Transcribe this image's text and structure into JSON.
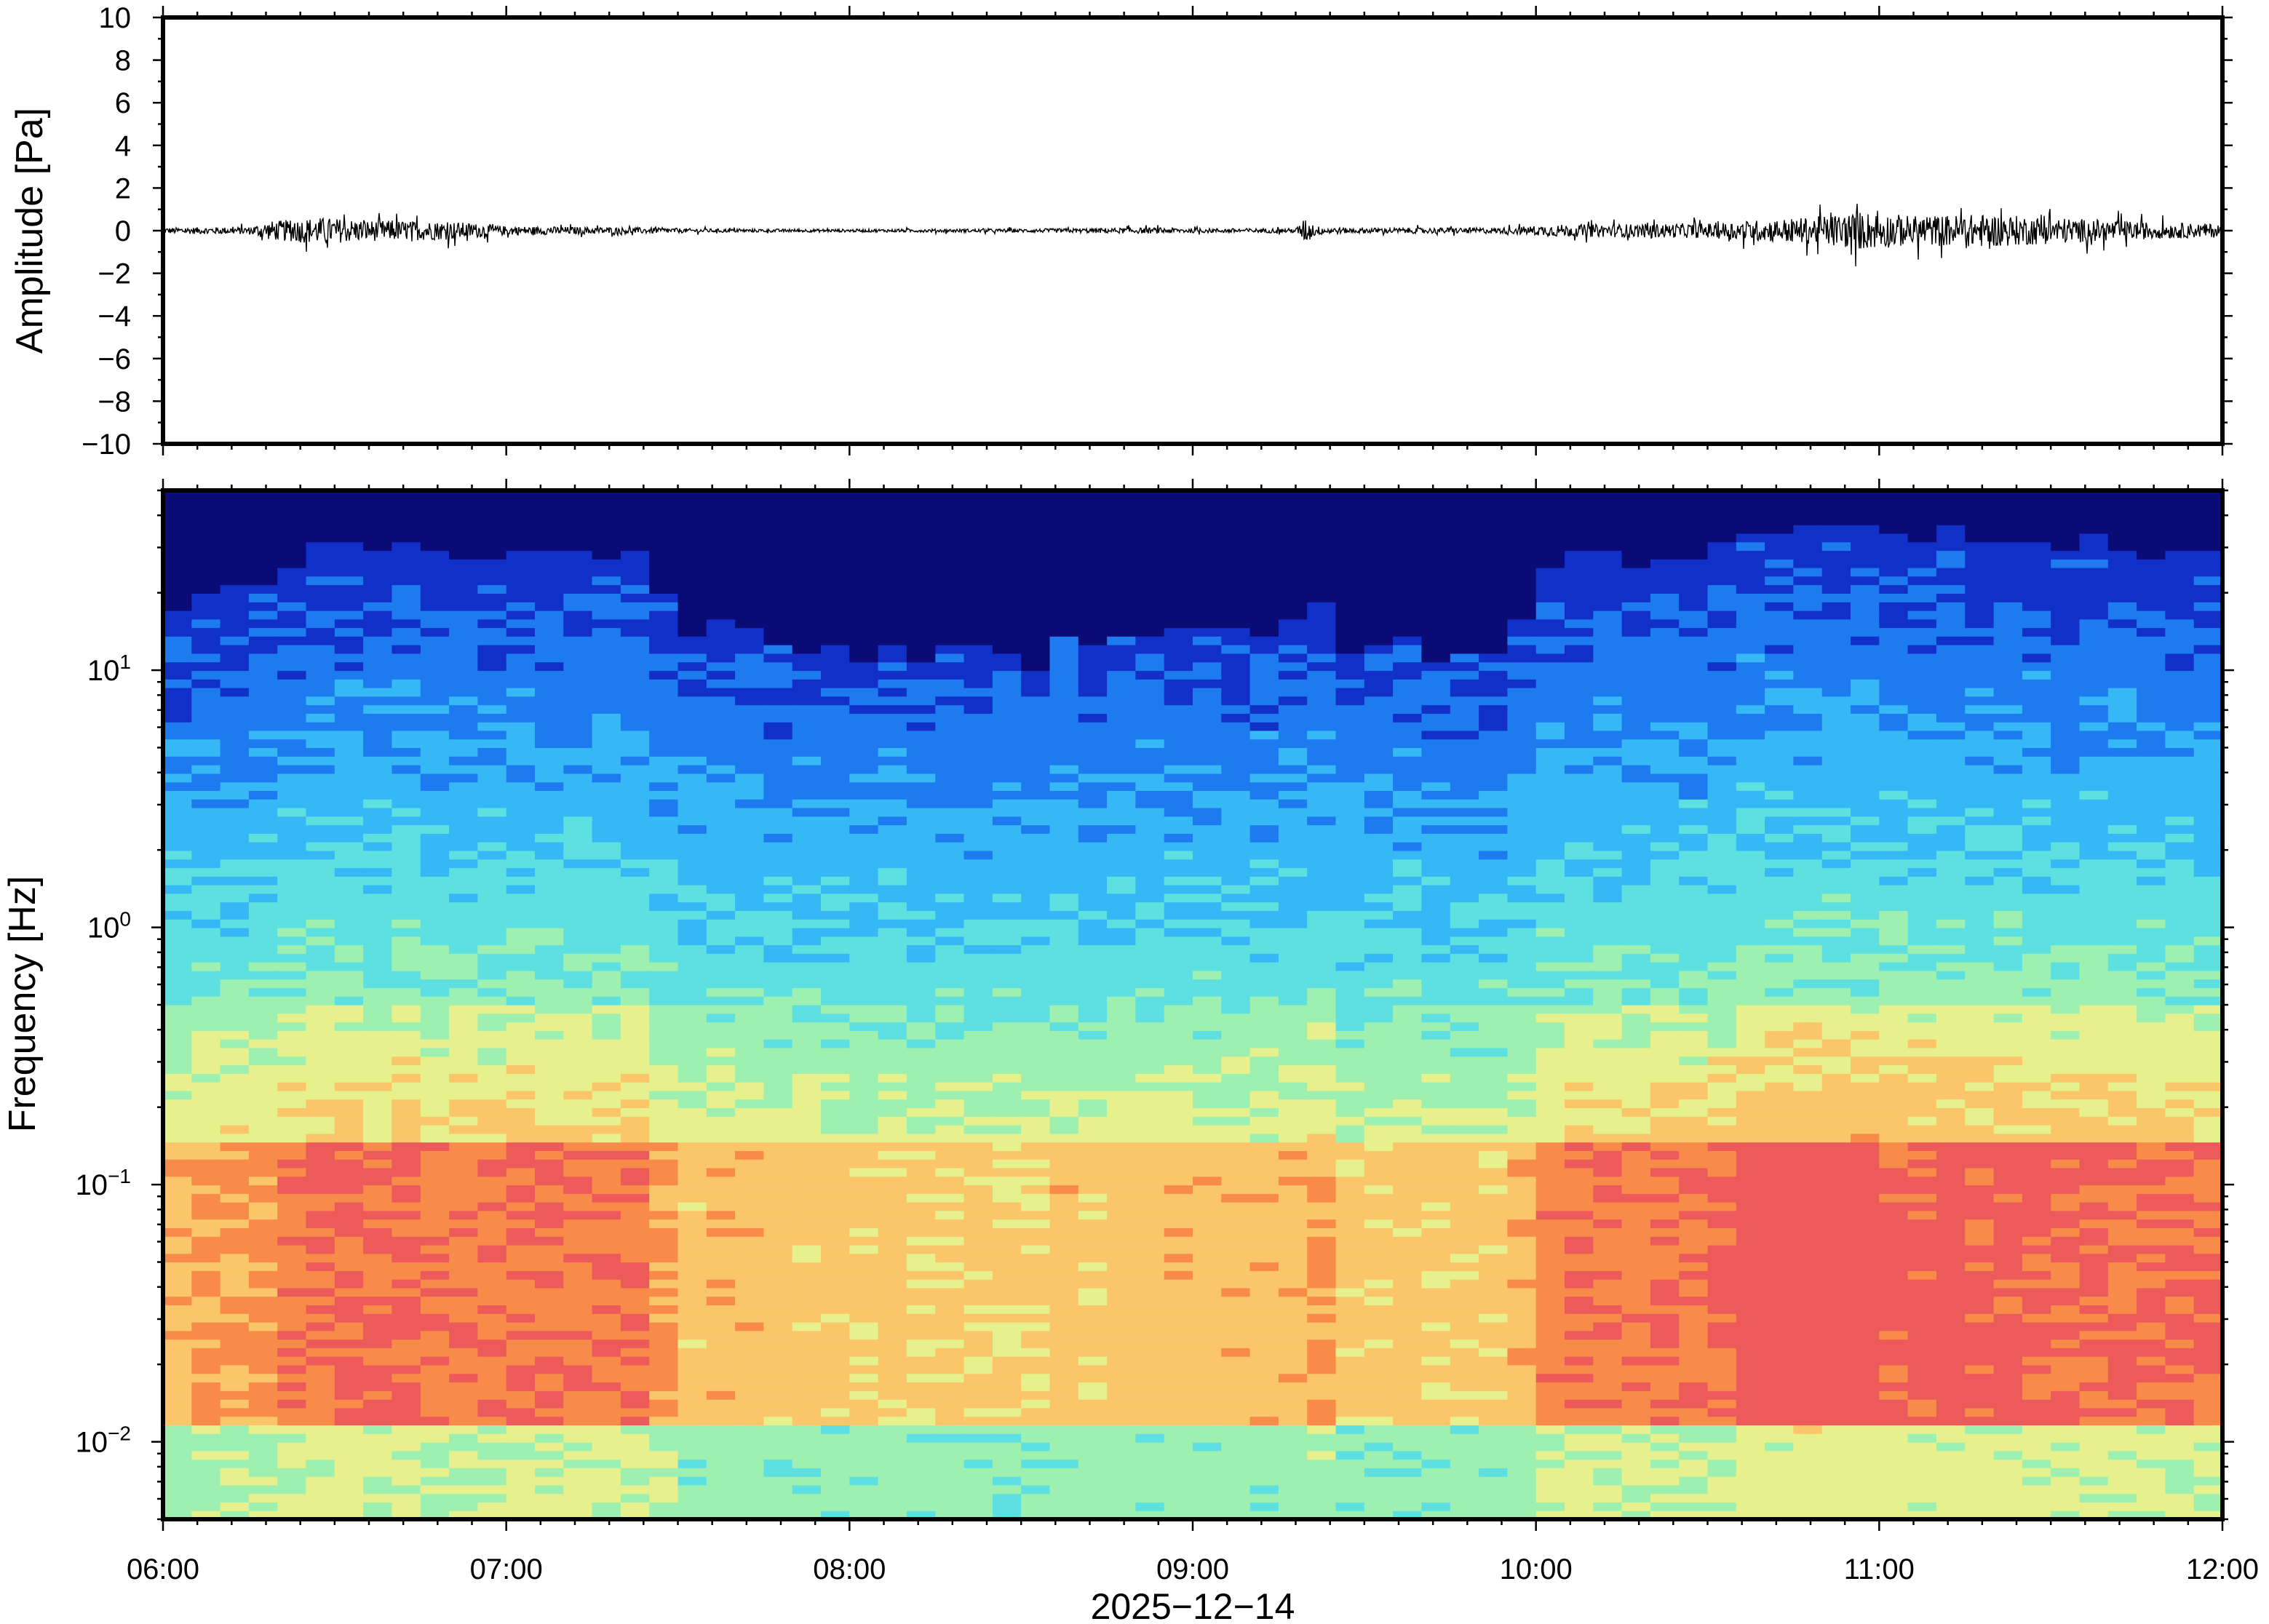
{
  "chart_data": [
    {
      "type": "line",
      "panel": "waveform",
      "ylabel": "Amplitude [Pa]",
      "ylim": [
        -10,
        10
      ],
      "yticks": [
        10,
        8,
        6,
        4,
        2,
        0,
        -2,
        -4,
        -6,
        -8,
        -10
      ],
      "ytick_labels": [
        "10",
        "8",
        "6",
        "4",
        "2",
        "0",
        "−2",
        "−4",
        "−6",
        "−8",
        "−10"
      ],
      "xlim": [
        "06:00",
        "12:00"
      ],
      "grid": false,
      "series": [
        {
          "color": "#000000",
          "envelope": {
            "time_hours": [
              6.0,
              6.25,
              6.3,
              6.45,
              6.6,
              6.85,
              7.0,
              7.4,
              7.6,
              8.0,
              8.5,
              8.9,
              9.0,
              9.3,
              9.33,
              9.36,
              9.45,
              9.9,
              10.05,
              10.3,
              10.5,
              10.6,
              10.8,
              10.95,
              11.1,
              11.3,
              11.5,
              11.8,
              12.0
            ],
            "amplitude_pa": [
              0.2,
              0.25,
              0.6,
              0.9,
              0.7,
              0.6,
              0.3,
              0.2,
              0.12,
              0.1,
              0.12,
              0.2,
              0.15,
              0.15,
              0.9,
              0.3,
              0.18,
              0.2,
              0.4,
              0.45,
              0.5,
              0.65,
              0.9,
              1.3,
              1.0,
              1.1,
              0.9,
              0.55,
              0.45
            ]
          }
        }
      ]
    },
    {
      "type": "heatmap",
      "panel": "spectrogram",
      "ylabel": "Frequency [Hz]",
      "yscale": "log",
      "ylim": [
        0.005,
        50
      ],
      "yticks": [
        0.01,
        0.1,
        1,
        10
      ],
      "ytick_labels": [
        {
          "base": "10",
          "exp": "−2"
        },
        {
          "base": "10",
          "exp": "−1"
        },
        {
          "base": "10",
          "exp": "0"
        },
        {
          "base": "10",
          "exp": "1"
        }
      ],
      "xlim": [
        "06:00",
        "12:00"
      ],
      "colormap": "jet-like (dark navy = low power, red = high power)",
      "colors": [
        "#0b0b77",
        "#1030c8",
        "#1e7aef",
        "#35b8f5",
        "#5ee0e0",
        "#9ef0b0",
        "#e6f08c",
        "#fbc669",
        "#f88a4a",
        "#ec5a5a"
      ],
      "power_profile": {
        "time_hours": [
          6.0,
          6.25,
          6.4,
          6.6,
          6.9,
          7.2,
          7.4,
          7.5,
          8.0,
          8.5,
          8.8,
          9.1,
          9.3,
          9.35,
          9.45,
          9.7,
          9.95,
          10.05,
          10.3,
          10.5,
          10.65,
          10.9,
          11.2,
          11.5,
          11.8,
          12.0
        ],
        "relative_level": [
          0.35,
          0.55,
          0.8,
          0.85,
          0.8,
          0.75,
          0.75,
          0.35,
          0.25,
          0.22,
          0.3,
          0.35,
          0.35,
          0.55,
          0.3,
          0.25,
          0.3,
          0.7,
          0.75,
          0.8,
          0.95,
          1.0,
          0.95,
          0.9,
          0.8,
          0.75
        ]
      }
    }
  ],
  "xaxis": {
    "tick_labels": [
      "06:00",
      "07:00",
      "08:00",
      "09:00",
      "10:00",
      "11:00",
      "12:00"
    ],
    "date_label": "2025−12−14"
  }
}
